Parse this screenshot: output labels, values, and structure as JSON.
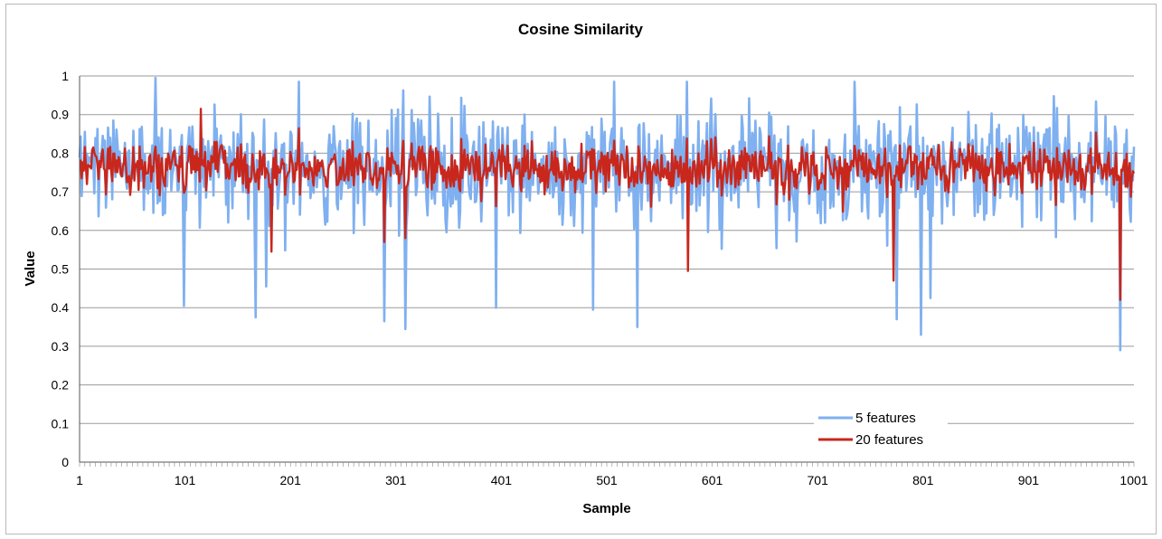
{
  "chart_data": {
    "type": "line",
    "title": "Cosine Similarity",
    "xlabel": "Sample",
    "ylabel": "Value",
    "xlim": [
      1,
      1001
    ],
    "ylim": [
      0,
      1
    ],
    "x_ticks": [
      "1",
      "101",
      "201",
      "301",
      "401",
      "501",
      "601",
      "701",
      "801",
      "901",
      "1001"
    ],
    "y_ticks": [
      "0",
      "0.1",
      "0.2",
      "0.3",
      "0.4",
      "0.5",
      "0.6",
      "0.7",
      "0.8",
      "0.9",
      "1"
    ],
    "grid": "horizontal",
    "legend_position": "bottom-right",
    "series": [
      {
        "name": "5 features",
        "color": "#7fb0f0",
        "baseline": 0.76,
        "spread": 0.14,
        "range": [
          0.29,
          0.995
        ],
        "notable_points": [
          {
            "x": 73,
            "y": 0.995
          },
          {
            "x": 100,
            "y": 0.405
          },
          {
            "x": 168,
            "y": 0.375
          },
          {
            "x": 178,
            "y": 0.455
          },
          {
            "x": 290,
            "y": 0.365
          },
          {
            "x": 310,
            "y": 0.345
          },
          {
            "x": 396,
            "y": 0.4
          },
          {
            "x": 488,
            "y": 0.395
          },
          {
            "x": 530,
            "y": 0.35
          },
          {
            "x": 776,
            "y": 0.37
          },
          {
            "x": 799,
            "y": 0.33
          },
          {
            "x": 808,
            "y": 0.425
          },
          {
            "x": 988,
            "y": 0.29
          }
        ]
      },
      {
        "name": "20 features",
        "color": "#c9271c",
        "baseline": 0.76,
        "spread": 0.06,
        "range": [
          0.42,
          0.92
        ],
        "notable_points": [
          {
            "x": 116,
            "y": 0.915
          },
          {
            "x": 183,
            "y": 0.545
          },
          {
            "x": 290,
            "y": 0.57
          },
          {
            "x": 310,
            "y": 0.58
          },
          {
            "x": 578,
            "y": 0.495
          },
          {
            "x": 773,
            "y": 0.47
          },
          {
            "x": 988,
            "y": 0.42
          }
        ]
      }
    ]
  }
}
